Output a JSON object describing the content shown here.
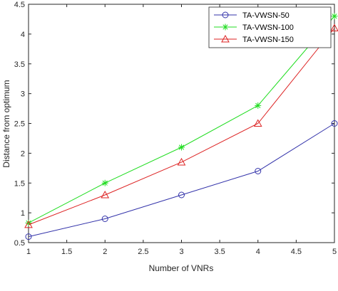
{
  "chart_data": {
    "type": "line",
    "xlabel": "Number of VNRs",
    "ylabel": "Distance from optimum",
    "xlim": [
      1,
      5
    ],
    "ylim": [
      0.5,
      4.5
    ],
    "xticks": [
      "1",
      "1.5",
      "2",
      "2.5",
      "3",
      "3.5",
      "4",
      "4.5",
      "5"
    ],
    "yticks": [
      "0.5",
      "1",
      "1.5",
      "2",
      "2.5",
      "3",
      "3.5",
      "4",
      "4.5"
    ],
    "grid": false,
    "legend_position": "top-right",
    "x": [
      1,
      2,
      3,
      4,
      5
    ],
    "series": [
      {
        "name": "TA-VWSN-50",
        "values": [
          0.6,
          0.9,
          1.3,
          1.7,
          2.5
        ],
        "color": "#3333aa",
        "marker": "circle"
      },
      {
        "name": "TA-VWSN-100",
        "values": [
          0.83,
          1.5,
          2.1,
          2.8,
          4.3
        ],
        "color": "#22dd22",
        "marker": "star"
      },
      {
        "name": "TA-VWSN-150",
        "values": [
          0.8,
          1.3,
          1.85,
          2.5,
          4.1
        ],
        "color": "#dd2222",
        "marker": "triangle"
      }
    ]
  }
}
